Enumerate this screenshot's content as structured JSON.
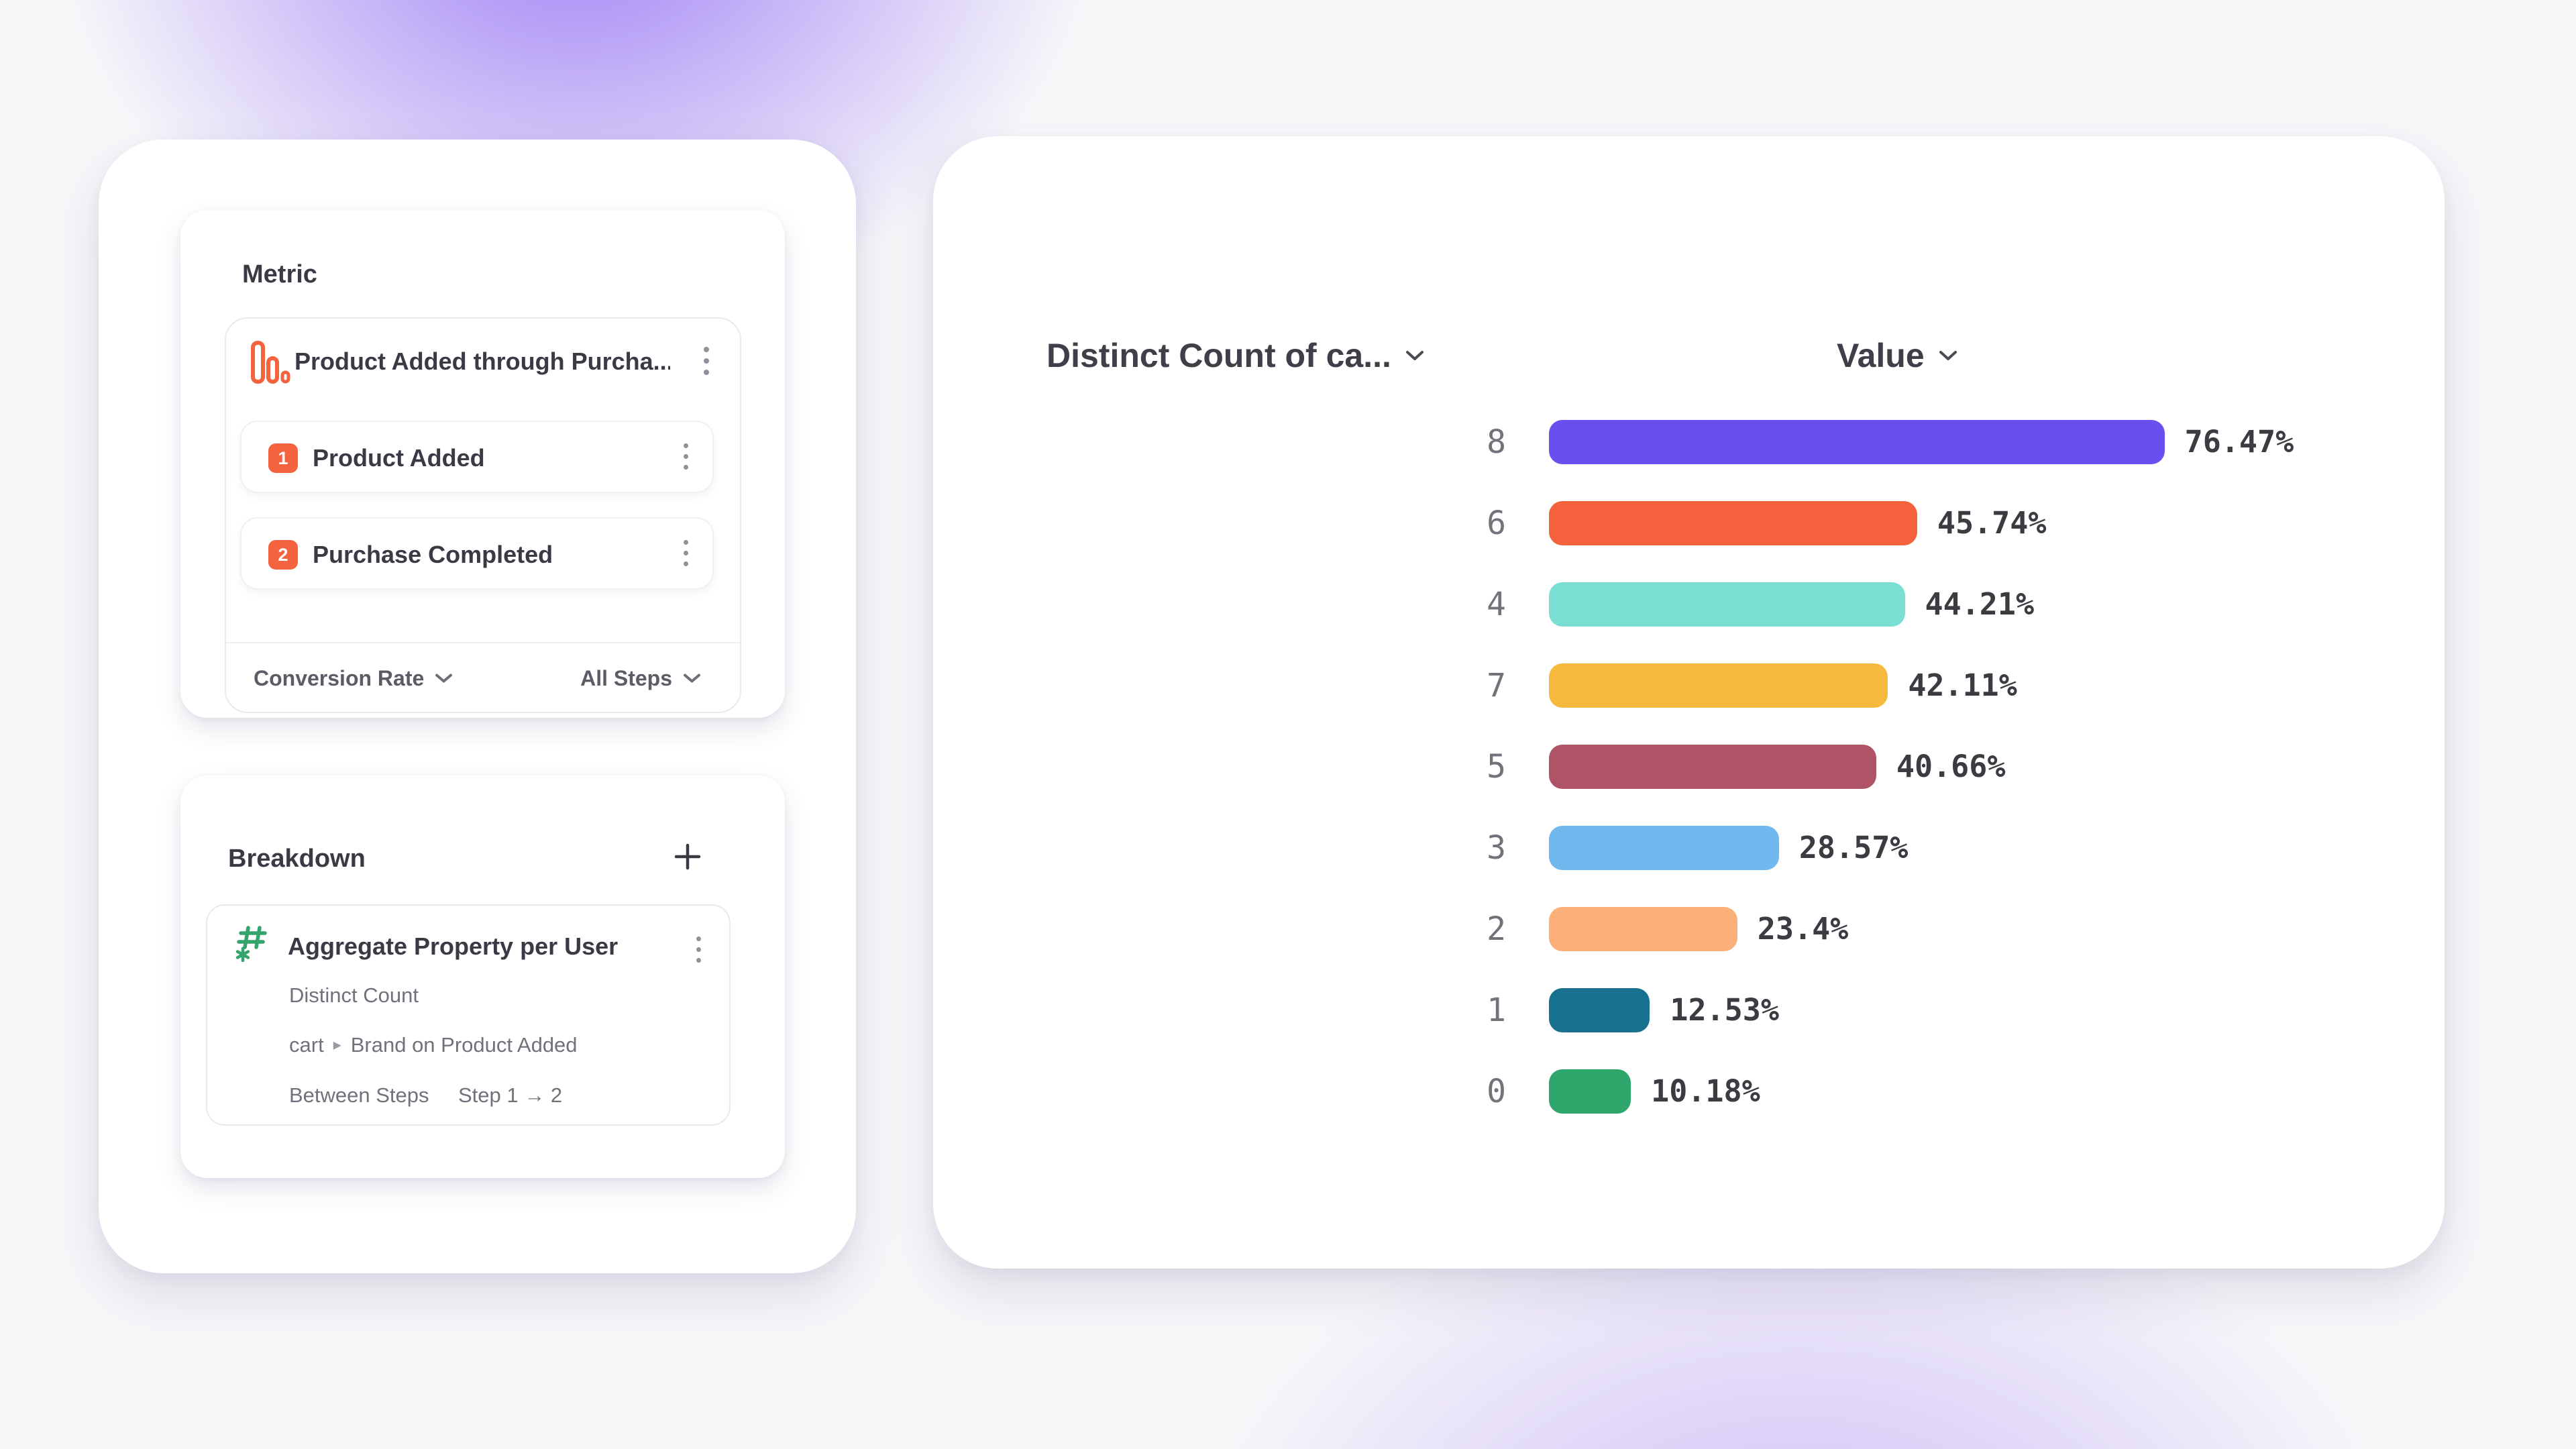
{
  "left_panel": {
    "metric": {
      "section_title": "Metric",
      "funnel_title": "Product Added through Purcha...",
      "steps": [
        {
          "number": "1",
          "label": "Product Added"
        },
        {
          "number": "2",
          "label": "Purchase Completed"
        }
      ],
      "measure_dropdown": "Conversion Rate",
      "steps_dropdown": "All Steps"
    },
    "breakdown": {
      "section_title": "Breakdown",
      "property_title": "Aggregate Property per User",
      "aggregation": "Distinct Count",
      "property_path": {
        "parent": "cart",
        "separator": "▸",
        "child": "Brand on Product Added"
      },
      "between_steps_label": "Between Steps",
      "between_steps_value": "Step 1 → 2"
    }
  },
  "chart_data": {
    "type": "bar",
    "orientation": "horizontal",
    "title": "",
    "column_headers": {
      "category": "Distinct Count of ca...",
      "value": "Value"
    },
    "categories": [
      "8",
      "6",
      "4",
      "7",
      "5",
      "3",
      "2",
      "1",
      "0"
    ],
    "values": [
      76.47,
      45.74,
      44.21,
      42.11,
      40.66,
      28.57,
      23.4,
      12.53,
      10.18
    ],
    "value_labels": [
      "76.47%",
      "45.74%",
      "44.21%",
      "42.11%",
      "40.66%",
      "28.57%",
      "23.4%",
      "12.53%",
      "10.18%"
    ],
    "bar_colors": [
      "#6B4EEF",
      "#F5603D",
      "#7BDED2",
      "#F6B93E",
      "#AF5366",
      "#6FB9EE",
      "#FBB07A",
      "#17718F",
      "#2FA66B"
    ],
    "xlim": [
      0,
      100
    ],
    "grid": false,
    "legend": "none"
  },
  "colors": {
    "accent_orange": "#F5623E",
    "accent_green": "#35A46C",
    "text_dark": "#3A3A44",
    "text_gray": "#71717C"
  }
}
